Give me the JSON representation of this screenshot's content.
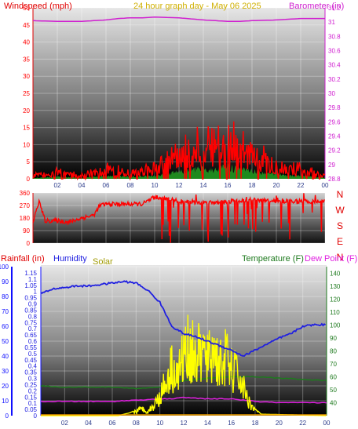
{
  "colors": {
    "wind": "#ff0000",
    "gust_fill": "#1e8a1e",
    "barometer": "#d020d0",
    "dark_blue_axis": "#2a3a8a",
    "rain": "#1010ff",
    "humidity": "#2020e0",
    "solar": "#ffff00",
    "solar_label": "#a09a00",
    "temperature": "#1e7a1e",
    "dewpoint": "#e020e0",
    "title": "#d0b000"
  },
  "chart_data": [
    {
      "type": "line",
      "name": "wind-barometer",
      "title": "24 hour graph day - May 06 2025",
      "left_label": "Windspeed (mph)",
      "right_label": "Barometer (in)",
      "x_ticks": [
        "02",
        "04",
        "06",
        "08",
        "10",
        "12",
        "14",
        "16",
        "18",
        "20",
        "22",
        "00"
      ],
      "y_left": {
        "range": [
          0,
          50
        ],
        "ticks": [
          "0",
          "5",
          "10",
          "15",
          "20",
          "25",
          "30",
          "35",
          "40",
          "45",
          "50"
        ]
      },
      "y_right": {
        "range": [
          28.8,
          31.2
        ],
        "ticks": [
          "28.8",
          "29",
          "29.2",
          "29.4",
          "29.6",
          "29.8",
          "30",
          "30.2",
          "30.4",
          "30.6",
          "30.8",
          "31",
          "31.2"
        ]
      },
      "barometer": {
        "x": [
          0,
          2,
          4,
          6,
          7,
          8,
          9,
          10,
          12,
          14,
          16,
          17,
          18,
          20,
          21,
          22,
          24
        ],
        "y": [
          31.02,
          31.01,
          31.01,
          31.03,
          31.05,
          31.06,
          31.06,
          31.07,
          31.06,
          31.03,
          31.01,
          31.01,
          31.02,
          31.03,
          31.04,
          31.05,
          31.05
        ]
      },
      "windspeed_envelope": {
        "x": [
          0,
          2,
          4,
          6,
          8,
          10,
          11,
          12,
          13,
          14,
          15,
          16,
          17,
          18,
          19,
          20,
          21,
          22,
          23,
          24
        ],
        "y": [
          1,
          2,
          1,
          3,
          2,
          3,
          5,
          7,
          9,
          10,
          9,
          12,
          9,
          8,
          6,
          5,
          3,
          3,
          2,
          1
        ]
      }
    },
    {
      "type": "line",
      "name": "wind-direction",
      "y_ticks": [
        "0",
        "90",
        "180",
        "270",
        "360"
      ],
      "compass": [
        "N",
        "W",
        "S",
        "E",
        "N"
      ],
      "direction": {
        "x": [
          0,
          0.5,
          1,
          2,
          3,
          4,
          5,
          5.5,
          6,
          7,
          8,
          9,
          10,
          11,
          12,
          14,
          16,
          18,
          20,
          22,
          24
        ],
        "y": [
          150,
          300,
          160,
          160,
          150,
          180,
          200,
          270,
          280,
          280,
          280,
          280,
          330,
          320,
          300,
          290,
          300,
          310,
          300,
          300,
          300
        ]
      }
    },
    {
      "type": "line",
      "name": "rain-humidity-solar-temp",
      "rain_label": "Rainfall (in)",
      "humidity_label": "Humidity",
      "solar_label": "Solar",
      "temp_label": "Temperature (F)",
      "dewpoint_label": "Dew Point (F)",
      "y_rain": {
        "range": [
          0,
          100
        ],
        "ticks": [
          "0",
          "10",
          "20",
          "30",
          "40",
          "50",
          "60",
          "70",
          "80",
          "90",
          "100"
        ]
      },
      "y_humidity": {
        "range": [
          0,
          1.2
        ],
        "ticks": [
          "0",
          "0.05",
          "0.1",
          "0.15",
          "0.2",
          "0.25",
          "0.3",
          "0.35",
          "0.4",
          "0.45",
          "0.5",
          "0.55",
          "0.6",
          "0.65",
          "0.7",
          "0.75",
          "0.8",
          "0.85",
          "0.9",
          "0.95",
          "1",
          "1.05",
          "1.1",
          "1.15"
        ]
      },
      "y_temp": {
        "range": [
          30,
          145
        ],
        "ticks": [
          "40",
          "50",
          "60",
          "70",
          "80",
          "90",
          "100",
          "110",
          "120",
          "130",
          "140"
        ]
      },
      "humidity": {
        "x": [
          0,
          1,
          2,
          3,
          4,
          5,
          6,
          7,
          8,
          9,
          10,
          11,
          12,
          13,
          14,
          15,
          16,
          17,
          18,
          19,
          20,
          21,
          22,
          23,
          24
        ],
        "y": [
          82,
          85,
          86,
          87,
          87,
          88,
          89,
          90,
          89,
          84,
          76,
          60,
          55,
          53,
          50,
          47,
          44,
          40,
          44,
          48,
          52,
          55,
          60,
          61,
          61
        ]
      },
      "temperature": {
        "x": [
          0,
          2,
          4,
          6,
          8,
          10,
          12,
          14,
          16,
          18,
          20,
          22,
          24
        ],
        "y": [
          53,
          52,
          52,
          52,
          51,
          52,
          57,
          59,
          60,
          60,
          59,
          58,
          57
        ]
      },
      "dewpoint": {
        "x": [
          0,
          2,
          4,
          6,
          8,
          10,
          11,
          12,
          14,
          16,
          18,
          20,
          22,
          24
        ],
        "y": [
          41,
          41,
          41,
          41,
          42,
          43,
          43,
          44,
          43,
          43,
          41,
          40,
          40,
          40
        ]
      },
      "solar": {
        "x": [
          0,
          6.5,
          7,
          7.5,
          8,
          8.5,
          9,
          9.5,
          10,
          10.5,
          11,
          11.5,
          12,
          12.5,
          13,
          13.5,
          14,
          14.5,
          15,
          15.5,
          16,
          16.5,
          17,
          17.5,
          18,
          18.5,
          24
        ],
        "y": [
          0,
          0,
          1,
          2,
          4,
          6,
          4,
          9,
          18,
          30,
          45,
          35,
          55,
          62,
          50,
          58,
          48,
          60,
          45,
          52,
          40,
          38,
          25,
          12,
          5,
          1,
          0
        ]
      }
    }
  ]
}
